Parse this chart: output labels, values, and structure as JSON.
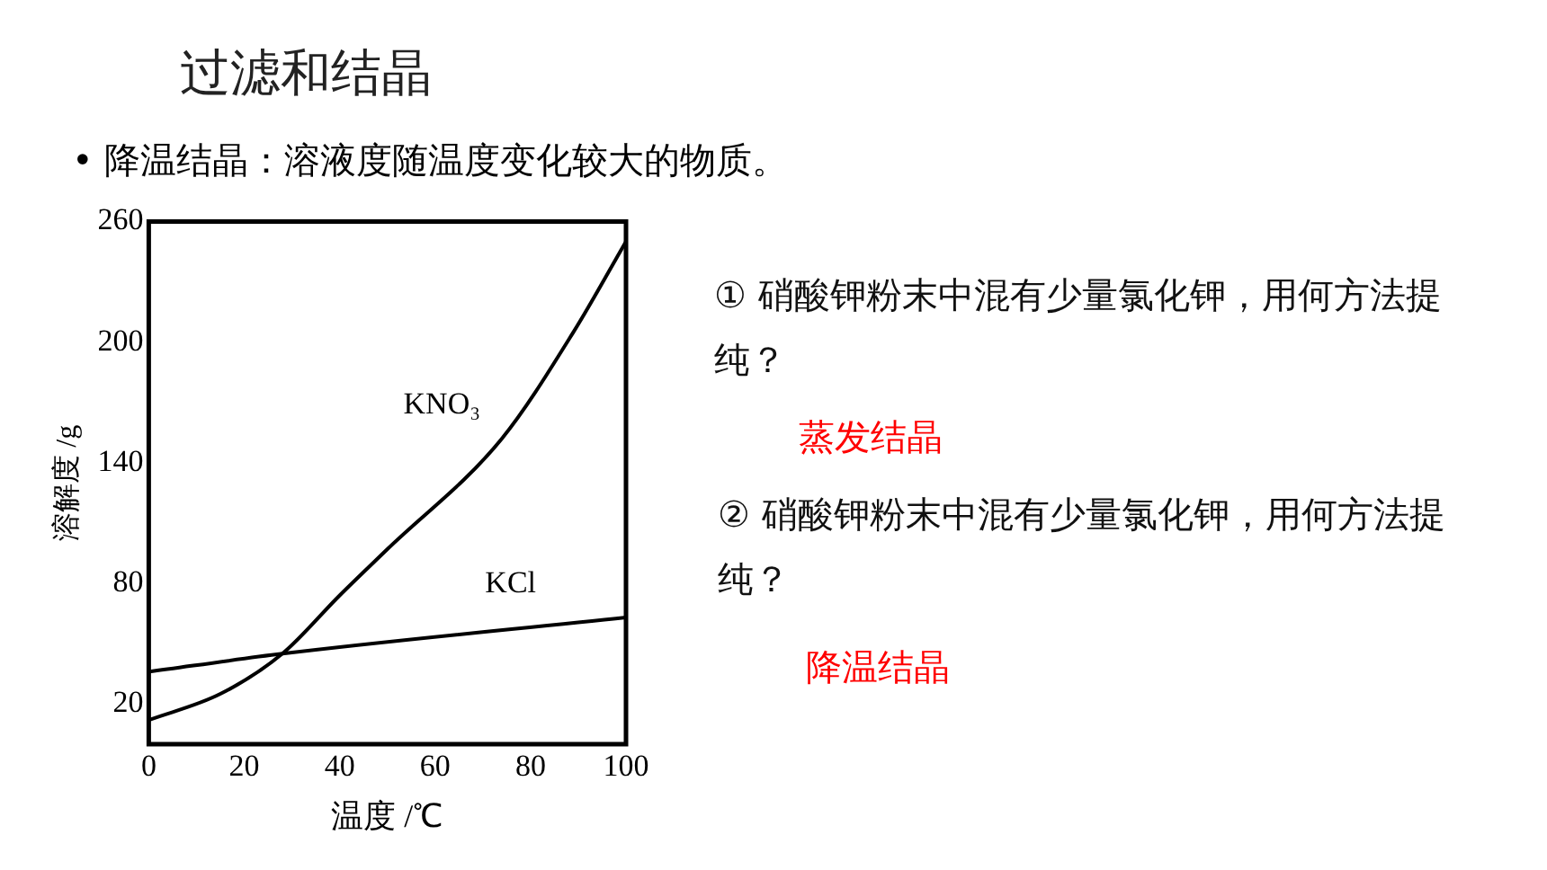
{
  "chart_data": {
    "type": "line",
    "title": "过滤和结晶",
    "subtitle": "• 降温结晶：溶液度随温度变化较大的物质。",
    "xlabel": "温度 /℃",
    "ylabel": "溶解度 /g",
    "series": [
      {
        "name": "KNO₃",
        "color": "#000000",
        "x": [
          0,
          15,
          28,
          40,
          50,
          74,
          89,
          100
        ],
        "values": [
          12,
          25,
          45,
          74,
          97,
          152,
          205,
          250
        ]
      },
      {
        "name": "KCl",
        "color": "#000000",
        "x": [
          0,
          28,
          100
        ],
        "values": [
          36,
          45,
          63
        ]
      }
    ],
    "xlim": [
      0,
      100
    ],
    "xticks": [
      0,
      20,
      40,
      60,
      80,
      100
    ],
    "ylim": [
      0,
      260
    ],
    "yticks": [
      20,
      80,
      140,
      200,
      260
    ],
    "grid": false,
    "legend": false,
    "marker": "none",
    "line_style": "solid",
    "annotations": [
      "① 硝酸钾粉末中混有少量氯化钾，用何方法提纯？",
      "蒸发结晶",
      "② 硝酸钾粉末中混有少量氯化钾，用何方法提纯？",
      "降温结晶"
    ]
  }
}
